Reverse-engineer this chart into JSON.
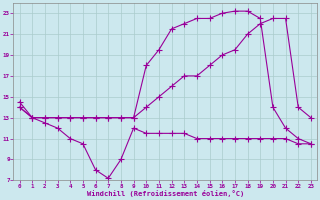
{
  "xlabel": "Windchill (Refroidissement éolien,°C)",
  "bg_color": "#cce8ee",
  "line_color": "#990099",
  "grid_color": "#aacccc",
  "xlim": [
    -0.5,
    23.5
  ],
  "ylim": [
    7,
    24
  ],
  "xticks": [
    0,
    1,
    2,
    3,
    4,
    5,
    6,
    7,
    8,
    9,
    10,
    11,
    12,
    13,
    14,
    15,
    16,
    17,
    18,
    19,
    20,
    21,
    22,
    23
  ],
  "yticks": [
    7,
    9,
    11,
    13,
    15,
    17,
    19,
    21,
    23
  ],
  "line1_x": [
    0,
    1,
    2,
    3,
    4,
    5,
    6,
    7,
    8,
    9,
    10,
    11,
    12,
    13,
    14,
    15,
    16,
    17,
    18,
    19,
    20,
    21,
    22,
    23
  ],
  "line1_y": [
    14,
    13,
    12.5,
    12,
    11,
    10.5,
    8,
    7.2,
    9,
    12,
    11.5,
    11.5,
    11.5,
    11.5,
    11,
    11,
    11,
    11,
    11,
    11,
    11,
    11,
    10.5,
    10.5
  ],
  "line2_x": [
    0,
    1,
    2,
    3,
    4,
    5,
    6,
    7,
    8,
    9,
    10,
    11,
    12,
    13,
    14,
    15,
    16,
    17,
    18,
    19,
    20,
    21,
    22,
    23
  ],
  "line2_y": [
    14,
    13,
    13,
    13,
    13,
    13,
    13,
    13,
    13,
    13,
    14,
    15,
    16,
    17,
    17,
    18,
    19,
    19.5,
    21,
    22,
    22.5,
    22.5,
    14,
    13
  ],
  "line3_x": [
    0,
    1,
    2,
    3,
    4,
    5,
    6,
    7,
    8,
    9,
    10,
    11,
    12,
    13,
    14,
    15,
    16,
    17,
    18,
    19,
    20,
    21,
    22,
    23
  ],
  "line3_y": [
    14.5,
    13,
    13,
    13,
    13,
    13,
    13,
    13,
    13,
    13,
    18,
    19.5,
    21.5,
    22,
    22.5,
    22.5,
    23,
    23.2,
    23.2,
    22.5,
    14,
    12,
    11,
    10.5
  ]
}
